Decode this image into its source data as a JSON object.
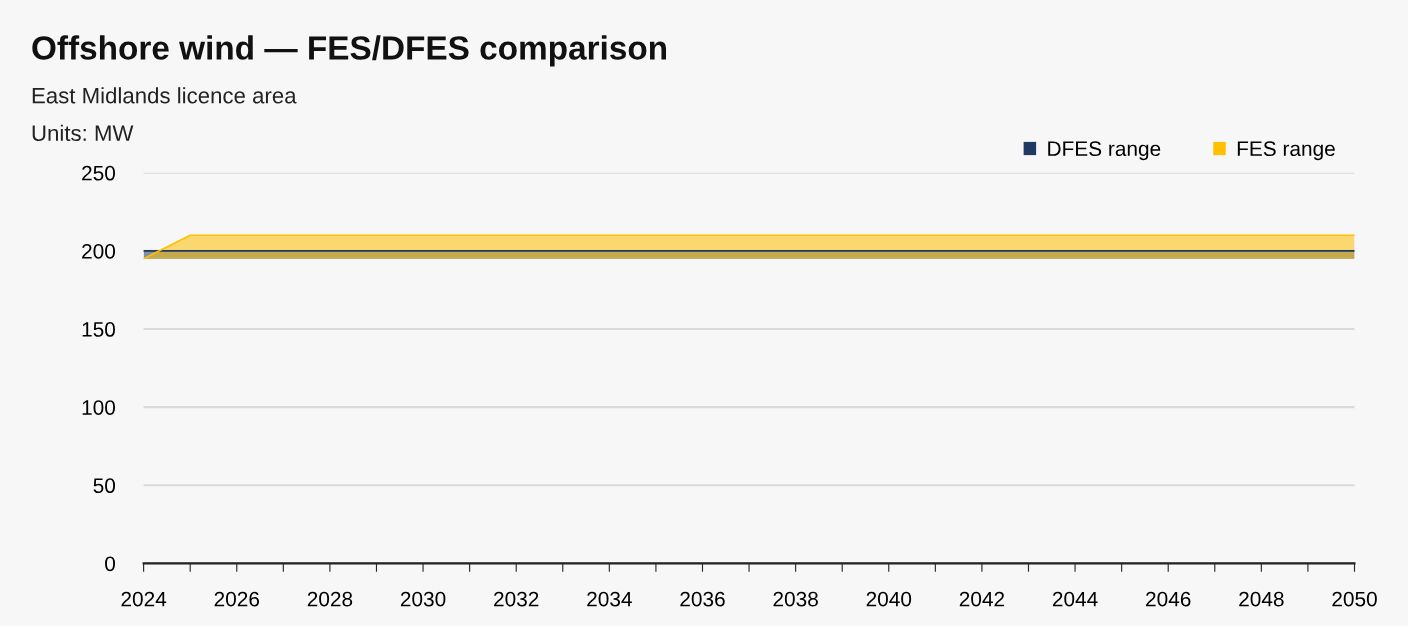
{
  "chart_data": {
    "type": "line",
    "title": "Offshore wind — FES/DFES comparison",
    "subtitle": "East Midlands licence area",
    "ylabel": "Units: MW",
    "x": [
      2024,
      2025,
      2026,
      2027,
      2028,
      2029,
      2030,
      2031,
      2032,
      2033,
      2034,
      2035,
      2036,
      2037,
      2038,
      2039,
      2040,
      2041,
      2042,
      2043,
      2044,
      2045,
      2046,
      2047,
      2048,
      2049,
      2050
    ],
    "series": [
      {
        "name": "DFES range",
        "color": "#1f3864",
        "values": [
          200,
          200,
          200,
          200,
          200,
          200,
          200,
          200,
          200,
          200,
          200,
          200,
          200,
          200,
          200,
          200,
          200,
          200,
          200,
          200,
          200,
          200,
          200,
          200,
          200,
          200,
          200
        ],
        "upper": [
          200,
          200,
          200,
          200,
          200,
          200,
          200,
          200,
          200,
          200,
          200,
          200,
          200,
          200,
          200,
          200,
          200,
          200,
          200,
          200,
          200,
          200,
          200,
          200,
          200,
          200,
          200
        ],
        "lower": [
          195,
          195,
          195,
          195,
          195,
          195,
          195,
          195,
          195,
          195,
          195,
          195,
          195,
          195,
          195,
          195,
          195,
          195,
          195,
          195,
          195,
          195,
          195,
          195,
          195,
          195,
          195
        ]
      },
      {
        "name": "FES range",
        "color": "#ffc000",
        "values": [
          195,
          210,
          210,
          210,
          210,
          210,
          210,
          210,
          210,
          210,
          210,
          210,
          210,
          210,
          210,
          210,
          210,
          210,
          210,
          210,
          210,
          210,
          210,
          210,
          210,
          210,
          210
        ],
        "upper": [
          195,
          210,
          210,
          210,
          210,
          210,
          210,
          210,
          210,
          210,
          210,
          210,
          210,
          210,
          210,
          210,
          210,
          210,
          210,
          210,
          210,
          210,
          210,
          210,
          210,
          210,
          210
        ],
        "lower": [
          195,
          195,
          195,
          195,
          195,
          195,
          195,
          195,
          195,
          195,
          195,
          195,
          195,
          195,
          195,
          195,
          195,
          195,
          195,
          195,
          195,
          195,
          195,
          195,
          195,
          195,
          195
        ]
      }
    ],
    "xlim": [
      2024,
      2050
    ],
    "xticks": [
      2024,
      {
        "value": 2025,
        "label": null
      },
      2026,
      {
        "value": 2027,
        "label": null
      },
      2028,
      {
        "value": 2029,
        "label": null
      },
      2030,
      {
        "value": 2031,
        "label": null
      },
      2032,
      {
        "value": 2033,
        "label": null
      },
      2034,
      {
        "value": 2035,
        "label": null
      },
      2036,
      {
        "value": 2037,
        "label": null
      },
      2038,
      {
        "value": 2039,
        "label": null
      },
      2040,
      {
        "value": 2041,
        "label": null
      },
      2042,
      {
        "value": 2043,
        "label": null
      },
      2044,
      {
        "value": 2045,
        "label": null
      },
      2046,
      {
        "value": 2047,
        "label": null
      },
      2048,
      {
        "value": 2049,
        "label": null
      },
      2050
    ],
    "ylim": [
      0,
      250
    ],
    "yticks": [
      0,
      50,
      100,
      150,
      200,
      250
    ],
    "grid": "y",
    "legend": "top right"
  }
}
